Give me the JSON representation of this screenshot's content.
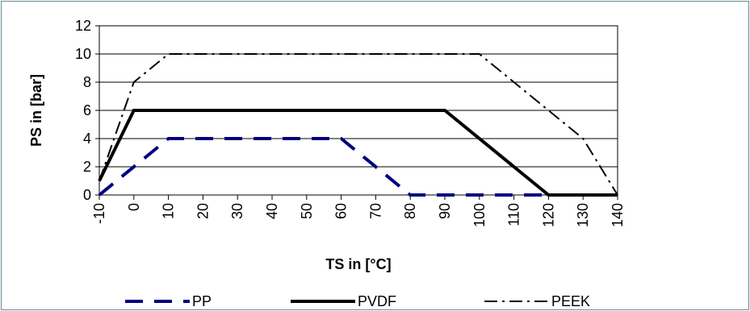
{
  "chart_data": {
    "type": "line",
    "xlabel": "TS in [°C]",
    "ylabel": "PS in [bar]",
    "x_tick_labels": [
      "-10",
      "0",
      "10",
      "20",
      "30",
      "40",
      "50",
      "60",
      "70",
      "80",
      "90",
      "100",
      "110",
      "120",
      "130",
      "140"
    ],
    "y_tick_labels": [
      "0",
      "2",
      "4",
      "6",
      "8",
      "10",
      "12"
    ],
    "xlim": [
      -10,
      140
    ],
    "ylim": [
      0,
      12
    ],
    "grid": "horizontal",
    "legend_position": "bottom",
    "series": [
      {
        "name": "PP",
        "color": "#000080",
        "style": "long-dash",
        "points": [
          [
            -10,
            0
          ],
          [
            10,
            4
          ],
          [
            60,
            4
          ],
          [
            80,
            0
          ],
          [
            120,
            0
          ]
        ]
      },
      {
        "name": "PVDF",
        "color": "#000000",
        "style": "solid",
        "points": [
          [
            -10,
            1
          ],
          [
            0,
            6
          ],
          [
            90,
            6
          ],
          [
            120,
            0
          ],
          [
            140,
            0
          ]
        ]
      },
      {
        "name": "PEEK",
        "color": "#000000",
        "style": "dash-dot",
        "points": [
          [
            -10,
            1
          ],
          [
            0,
            8
          ],
          [
            10,
            10
          ],
          [
            100,
            10
          ],
          [
            130,
            4
          ],
          [
            140,
            0
          ]
        ]
      }
    ]
  }
}
